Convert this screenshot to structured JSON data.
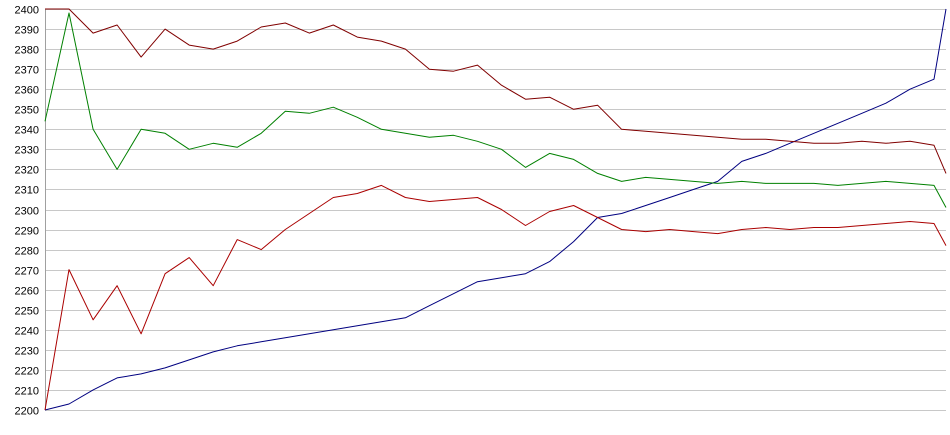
{
  "chart_data": {
    "type": "line",
    "title": "",
    "xlabel": "",
    "ylabel": "",
    "ylim": [
      2200,
      2400
    ],
    "yticks": [
      2200,
      2210,
      2220,
      2230,
      2240,
      2250,
      2260,
      2270,
      2280,
      2290,
      2300,
      2310,
      2320,
      2330,
      2340,
      2350,
      2360,
      2370,
      2380,
      2390,
      2400
    ],
    "xlim": [
      0,
      150
    ],
    "grid": "horizontal",
    "legend": "none",
    "x": [
      0,
      4,
      8,
      12,
      16,
      20,
      24,
      28,
      32,
      36,
      40,
      44,
      48,
      52,
      56,
      60,
      64,
      68,
      72,
      76,
      80,
      84,
      88,
      92,
      96,
      100,
      104,
      108,
      112,
      116,
      120,
      124,
      128,
      132,
      136,
      140,
      144,
      148,
      150
    ],
    "series": [
      {
        "color": "#000080",
        "values": [
          2200,
          2203,
          2210,
          2216,
          2218,
          2221,
          2225,
          2229,
          2232,
          2234,
          2236,
          2238,
          2240,
          2242,
          2244,
          2246,
          2252,
          2258,
          2264,
          2266,
          2268,
          2274,
          2284,
          2296,
          2298,
          2302,
          2306,
          2310,
          2314,
          2324,
          2328,
          2333,
          2338,
          2343,
          2348,
          2353,
          2360,
          2365,
          2400
        ]
      },
      {
        "color": "#800000",
        "values": [
          2400,
          2400,
          2388,
          2392,
          2376,
          2390,
          2382,
          2380,
          2384,
          2391,
          2393,
          2388,
          2392,
          2386,
          2384,
          2380,
          2370,
          2369,
          2372,
          2362,
          2355,
          2356,
          2350,
          2352,
          2340,
          2339,
          2338,
          2337,
          2336,
          2335,
          2335,
          2334,
          2333,
          2333,
          2334,
          2333,
          2334,
          2332,
          2318
        ]
      },
      {
        "color": "#008000",
        "values": [
          2344,
          2398,
          2340,
          2320,
          2340,
          2338,
          2330,
          2333,
          2331,
          2338,
          2349,
          2348,
          2351,
          2346,
          2340,
          2338,
          2336,
          2337,
          2334,
          2330,
          2321,
          2328,
          2325,
          2318,
          2314,
          2316,
          2315,
          2314,
          2313,
          2314,
          2313,
          2313,
          2313,
          2312,
          2313,
          2314,
          2313,
          2312,
          2301
        ]
      },
      {
        "color": "#aa0000",
        "values": [
          2200,
          2270,
          2245,
          2262,
          2238,
          2268,
          2276,
          2262,
          2285,
          2280,
          2290,
          2298,
          2306,
          2308,
          2312,
          2306,
          2304,
          2305,
          2306,
          2300,
          2292,
          2299,
          2302,
          2296,
          2290,
          2289,
          2290,
          2289,
          2288,
          2290,
          2291,
          2290,
          2291,
          2291,
          2292,
          2293,
          2294,
          2293,
          2282
        ]
      }
    ]
  }
}
